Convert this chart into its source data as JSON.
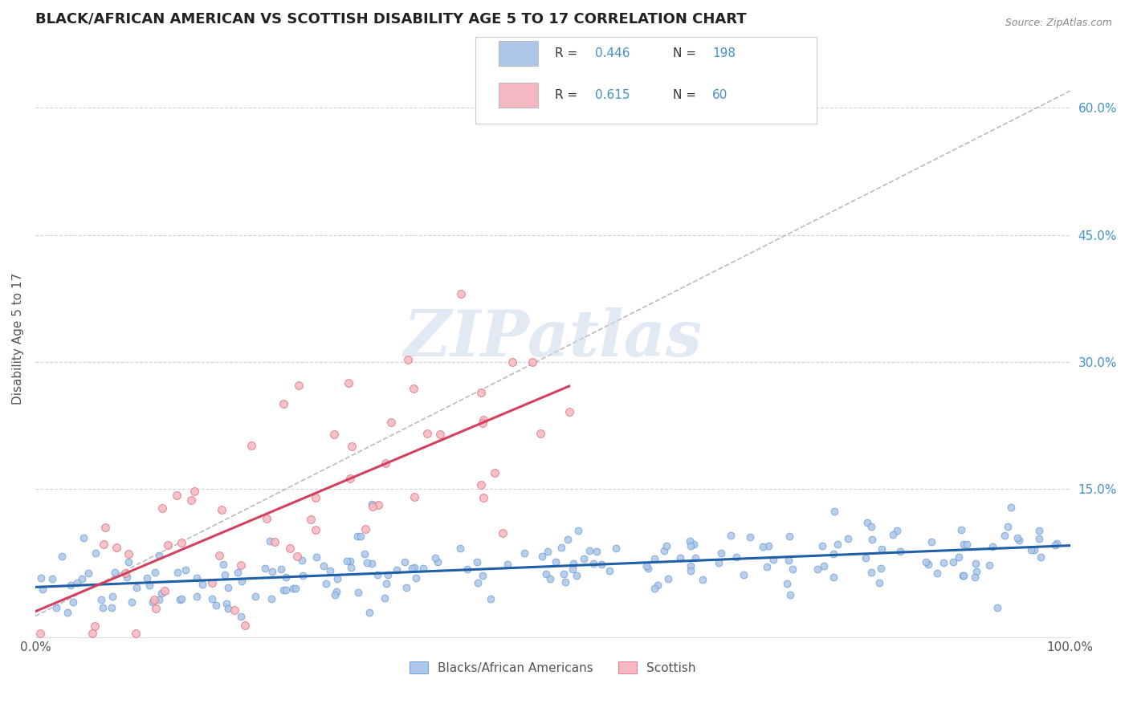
{
  "title": "BLACK/AFRICAN AMERICAN VS SCOTTISH DISABILITY AGE 5 TO 17 CORRELATION CHART",
  "source": "Source: ZipAtlas.com",
  "ylabel": "Disability Age 5 to 17",
  "watermark": "ZIPatlas",
  "blue_color": "#aec6e8",
  "blue_edge_color": "#5b9bd5",
  "pink_color": "#f4b8c1",
  "pink_edge_color": "#e07080",
  "blue_line_color": "#1f5fa6",
  "pink_line_color": "#d44060",
  "right_label_color": "#4292c6",
  "title_color": "#222222",
  "background_color": "#ffffff",
  "grid_color": "#cccccc",
  "xmin": 0.0,
  "xmax": 1.0,
  "ymin": -0.025,
  "ymax": 0.68,
  "right_yticks": [
    0.15,
    0.3,
    0.45,
    0.6
  ],
  "right_yticklabels": [
    "15.0%",
    "30.0%",
    "45.0%",
    "60.0%"
  ],
  "diag_line_color": "#bbbbbb",
  "legend_box_color": "#f8f8f8",
  "legend_box_edge": "#cccccc",
  "blue_n": 198,
  "pink_n": 60
}
